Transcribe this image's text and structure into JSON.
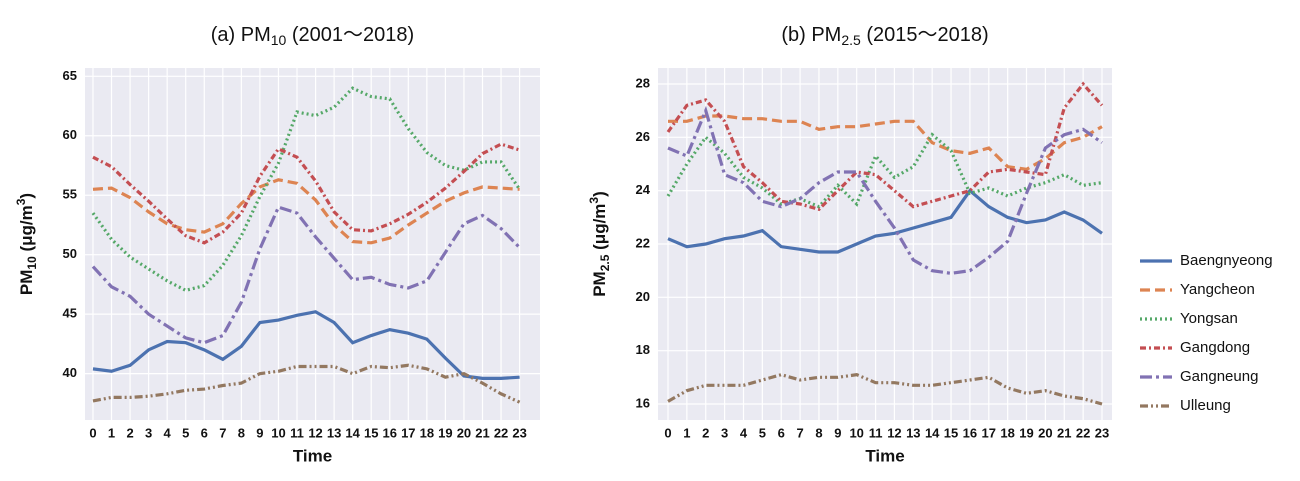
{
  "chart_data": [
    {
      "type": "line",
      "title": [
        "(a) PM",
        "10",
        " (2001～2018)"
      ],
      "xlabel": "Time",
      "ylabel": [
        "PM",
        "10",
        " (μg/m",
        "3",
        ")"
      ],
      "x": [
        0,
        1,
        2,
        3,
        4,
        5,
        6,
        7,
        8,
        9,
        10,
        11,
        12,
        13,
        14,
        15,
        16,
        17,
        18,
        19,
        20,
        21,
        22,
        23
      ],
      "xlim": [
        -0.43,
        24.1
      ],
      "xticks": [
        0,
        1,
        2,
        3,
        4,
        5,
        6,
        7,
        8,
        9,
        10,
        11,
        12,
        13,
        14,
        15,
        16,
        17,
        18,
        19,
        20,
        21,
        22,
        23
      ],
      "ylim": [
        36.1,
        65.7
      ],
      "yticks": [
        40,
        45,
        50,
        55,
        60,
        65
      ],
      "grid": true,
      "series": [
        {
          "name": "Baengnyeong",
          "color": "#4c72b0",
          "dash": "none",
          "values": [
            40.4,
            40.2,
            40.7,
            42,
            42.7,
            42.6,
            42,
            41.2,
            42.3,
            44.3,
            44.5,
            44.9,
            45.2,
            44.3,
            42.6,
            43.2,
            43.7,
            43.4,
            42.9,
            41.3,
            39.8,
            39.6,
            39.6,
            39.7
          ]
        },
        {
          "name": "Yangcheon",
          "color": "#dd8452",
          "dash": "10,5",
          "values": [
            55.5,
            55.6,
            54.8,
            53.6,
            52.6,
            52.1,
            51.9,
            52.6,
            54.3,
            55.7,
            56.3,
            56,
            54.6,
            52.5,
            51.1,
            51,
            51.4,
            52.5,
            53.5,
            54.5,
            55.2,
            55.7,
            55.6,
            55.5
          ]
        },
        {
          "name": "Yongsan",
          "color": "#55a868",
          "dash": "2,3",
          "values": [
            53.5,
            51.3,
            49.8,
            48.8,
            47.8,
            47,
            47.4,
            49.1,
            51.6,
            54.9,
            57.7,
            62,
            61.7,
            62.4,
            64,
            63.3,
            63.1,
            60.6,
            58.6,
            57.5,
            57.1,
            57.8,
            57.8,
            55.5
          ]
        },
        {
          "name": "Gangdong",
          "color": "#c44e52",
          "dash": "6,3,2,3",
          "values": [
            58.2,
            57.4,
            55.9,
            54.5,
            53,
            51.6,
            51,
            51.9,
            53.5,
            56.6,
            58.9,
            58.2,
            56.2,
            53.6,
            52.1,
            52,
            52.6,
            53.4,
            54.4,
            55.6,
            57,
            58.5,
            59.3,
            58.8
          ]
        },
        {
          "name": "Gangneung",
          "color": "#8172b3",
          "dash": "12,4,3,4",
          "values": [
            49,
            47.3,
            46.5,
            45,
            44,
            43,
            42.6,
            43.2,
            46,
            50.5,
            54,
            53.5,
            51.5,
            49.7,
            47.9,
            48.1,
            47.5,
            47.2,
            47.8,
            50.2,
            52.6,
            53.3,
            52.2,
            50.6
          ]
        },
        {
          "name": "Ulleung",
          "color": "#937860",
          "dash": "8,3,2,3,2,3",
          "values": [
            37.7,
            38,
            38,
            38.1,
            38.3,
            38.6,
            38.7,
            39,
            39.2,
            40,
            40.2,
            40.6,
            40.6,
            40.6,
            40,
            40.6,
            40.5,
            40.7,
            40.4,
            39.7,
            40,
            39.2,
            38.3,
            37.6
          ]
        }
      ]
    },
    {
      "type": "line",
      "title": [
        "(b) PM",
        "2.5",
        " (2015～2018)"
      ],
      "xlabel": "Time",
      "ylabel": [
        "PM",
        "2.5",
        " (μg/m",
        "3",
        ")"
      ],
      "x": [
        0,
        1,
        2,
        3,
        4,
        5,
        6,
        7,
        8,
        9,
        10,
        11,
        12,
        13,
        14,
        15,
        16,
        17,
        18,
        19,
        20,
        21,
        22,
        23
      ],
      "xlim": [
        -0.53,
        23.53
      ],
      "xticks": [
        0,
        1,
        2,
        3,
        4,
        5,
        6,
        7,
        8,
        9,
        10,
        11,
        12,
        13,
        14,
        15,
        16,
        17,
        18,
        19,
        20,
        21,
        22,
        23
      ],
      "ylim": [
        15.4,
        28.6
      ],
      "yticks": [
        16,
        18,
        20,
        22,
        24,
        26,
        28
      ],
      "grid": true,
      "series": [
        {
          "name": "Baengnyeong",
          "color": "#4c72b0",
          "dash": "none",
          "values": [
            22.2,
            21.9,
            22,
            22.2,
            22.3,
            22.5,
            21.9,
            21.8,
            21.7,
            21.7,
            22,
            22.3,
            22.4,
            22.6,
            22.8,
            23,
            24,
            23.4,
            23,
            22.8,
            22.9,
            23.2,
            22.9,
            22.4
          ]
        },
        {
          "name": "Yangcheon",
          "color": "#dd8452",
          "dash": "10,5",
          "values": [
            26.6,
            26.6,
            26.8,
            26.8,
            26.7,
            26.7,
            26.6,
            26.6,
            26.3,
            26.4,
            26.4,
            26.5,
            26.6,
            26.6,
            25.8,
            25.5,
            25.4,
            25.6,
            24.9,
            24.8,
            25.2,
            25.8,
            26,
            26.4
          ]
        },
        {
          "name": "Yongsan",
          "color": "#55a868",
          "dash": "2,3",
          "values": [
            23.8,
            25,
            26,
            25.4,
            24.5,
            24.1,
            23.5,
            23.7,
            23.4,
            24.2,
            23.5,
            25.3,
            24.5,
            24.9,
            26.1,
            25.5,
            23.9,
            24.1,
            23.8,
            24.1,
            24.3,
            24.6,
            24.2,
            24.3
          ]
        },
        {
          "name": "Gangdong",
          "color": "#c44e52",
          "dash": "6,3,2,3",
          "values": [
            26.2,
            27.2,
            27.4,
            26.6,
            24.9,
            24.3,
            23.6,
            23.5,
            23.3,
            24,
            24.7,
            24.6,
            24,
            23.4,
            23.6,
            23.8,
            24,
            24.7,
            24.8,
            24.7,
            24.6,
            27.1,
            28,
            27.2
          ]
        },
        {
          "name": "Gangneung",
          "color": "#8172b3",
          "dash": "12,4,3,4",
          "values": [
            25.6,
            25.3,
            27,
            24.6,
            24.3,
            23.6,
            23.4,
            23.7,
            24.3,
            24.7,
            24.7,
            23.6,
            22.6,
            21.4,
            21,
            20.9,
            21,
            21.5,
            22.1,
            23.9,
            25.6,
            26.1,
            26.3,
            25.8
          ]
        },
        {
          "name": "Ulleung",
          "color": "#937860",
          "dash": "8,3,2,3,2,3",
          "values": [
            16.1,
            16.5,
            16.7,
            16.7,
            16.7,
            16.9,
            17.1,
            16.9,
            17,
            17,
            17.1,
            16.8,
            16.8,
            16.7,
            16.7,
            16.8,
            16.9,
            17,
            16.6,
            16.4,
            16.5,
            16.3,
            16.2,
            16
          ]
        }
      ]
    }
  ]
}
